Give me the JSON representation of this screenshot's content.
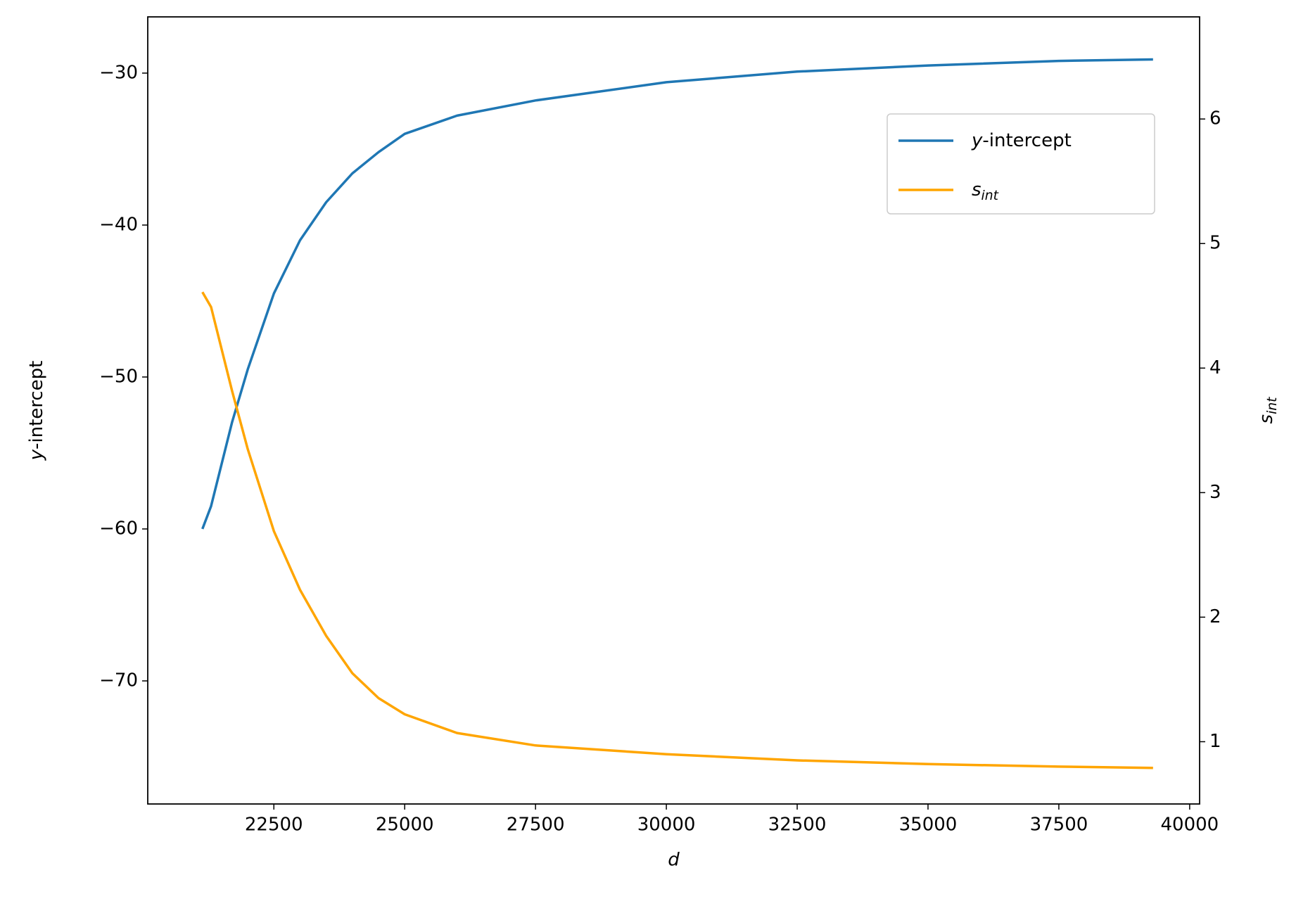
{
  "chart_data": {
    "type": "line",
    "x_label": "d",
    "y_label": "y-intercept",
    "y2_label": "s_int",
    "x": [
      21134,
      21300,
      21700,
      22000,
      22500,
      23000,
      23500,
      24000,
      24500,
      25000,
      26000,
      27500,
      30000,
      32500,
      35000,
      37500,
      39300
    ],
    "series": [
      {
        "name": "y-intercept",
        "color": "#1f77b4",
        "axis": "y",
        "values": [
          -60,
          -58.5,
          -53,
          -49.5,
          -44.5,
          -41,
          -38.5,
          -36.6,
          -35.2,
          -34,
          -32.8,
          -31.8,
          -30.6,
          -29.9,
          -29.5,
          -29.2,
          -29.1
        ]
      },
      {
        "name": "s_int",
        "color": "#ffa500",
        "axis": "y2",
        "values": [
          4.61,
          4.49,
          3.82,
          3.35,
          2.69,
          2.22,
          1.85,
          1.55,
          1.35,
          1.22,
          1.07,
          0.97,
          0.9,
          0.85,
          0.82,
          0.8,
          0.79
        ]
      }
    ],
    "xlim": [
      20090,
      40190
    ],
    "xticks": [
      22500,
      25000,
      27500,
      30000,
      32500,
      35000,
      37500,
      40000
    ],
    "ylim": [
      -78.1,
      -26.3
    ],
    "yticks": [
      -70,
      -60,
      -50,
      -40,
      -30
    ],
    "y2lim": [
      0.5,
      6.82
    ],
    "y2ticks": [
      1,
      2,
      3,
      4,
      5,
      6
    ],
    "legend": "upper right"
  }
}
